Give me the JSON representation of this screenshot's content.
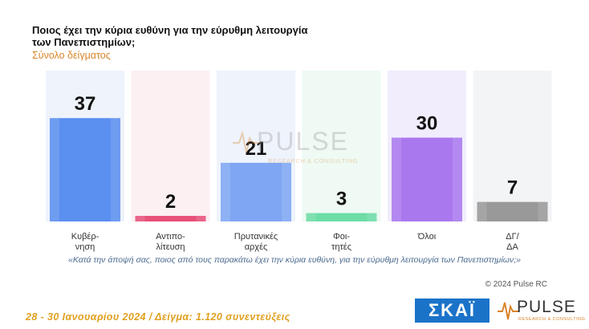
{
  "header": {
    "title": "Ποιος έχει την κύρια ευθύνη για την εύρυθμη λειτουργία των Πανεπιστημίων;",
    "subtitle": "Σύνολο δείγματος"
  },
  "chart_data": {
    "type": "bar",
    "title": "Ποιος έχει την κύρια ευθύνη για την εύρυθμη λειτουργία των Πανεπιστημίων;",
    "subtitle": "Σύνολο δείγματος",
    "categories": [
      [
        "Κυβέρ-",
        "νηση"
      ],
      [
        "Αντιπο-",
        "λίτευση"
      ],
      [
        "Πρυτανικές",
        "αρχές"
      ],
      [
        "Φοι-",
        "τητές"
      ],
      [
        "Όλοι"
      ],
      [
        "ΔΓ/",
        "ΔΑ"
      ]
    ],
    "values": [
      37,
      2,
      21,
      3,
      30,
      7
    ],
    "value_labels": [
      "37",
      "2",
      "21",
      "3",
      "30",
      "7"
    ],
    "colors": [
      "#5b8ff0",
      "#e8507a",
      "#7fa6f3",
      "#6ddca6",
      "#a978ee",
      "#999999"
    ],
    "background_colors": [
      "#eef3fc",
      "#fdf0f2",
      "#eef3fc",
      "#eefaf3",
      "#f1edfc",
      "#f3f4f6"
    ],
    "ylim": [
      0,
      54
    ],
    "grid": false,
    "legend": "none"
  },
  "watermark": {
    "name": "PULSE",
    "sub": "RESEARCH & CONSULTING"
  },
  "question": "«Κατά την άποψή σας, ποιος από τους παρακάτω έχει την κύρια ευθύνη, για την εύρυθμη λειτουργία των Πανεπιστημίων;»",
  "copyright": "© 2024 Pulse RC",
  "footer": {
    "text": "28 - 30 Ιανουαρίου 2024 / Δείγμα: 1.120 συνεντεύξεις"
  },
  "logos": {
    "skai": "ΣΚΑΪ",
    "pulse": "PULSE",
    "pulse_sub": "RESEARCH & CONSULTING",
    "skai_color": "#1a73c9",
    "pulse_accent": "#d9852a"
  }
}
